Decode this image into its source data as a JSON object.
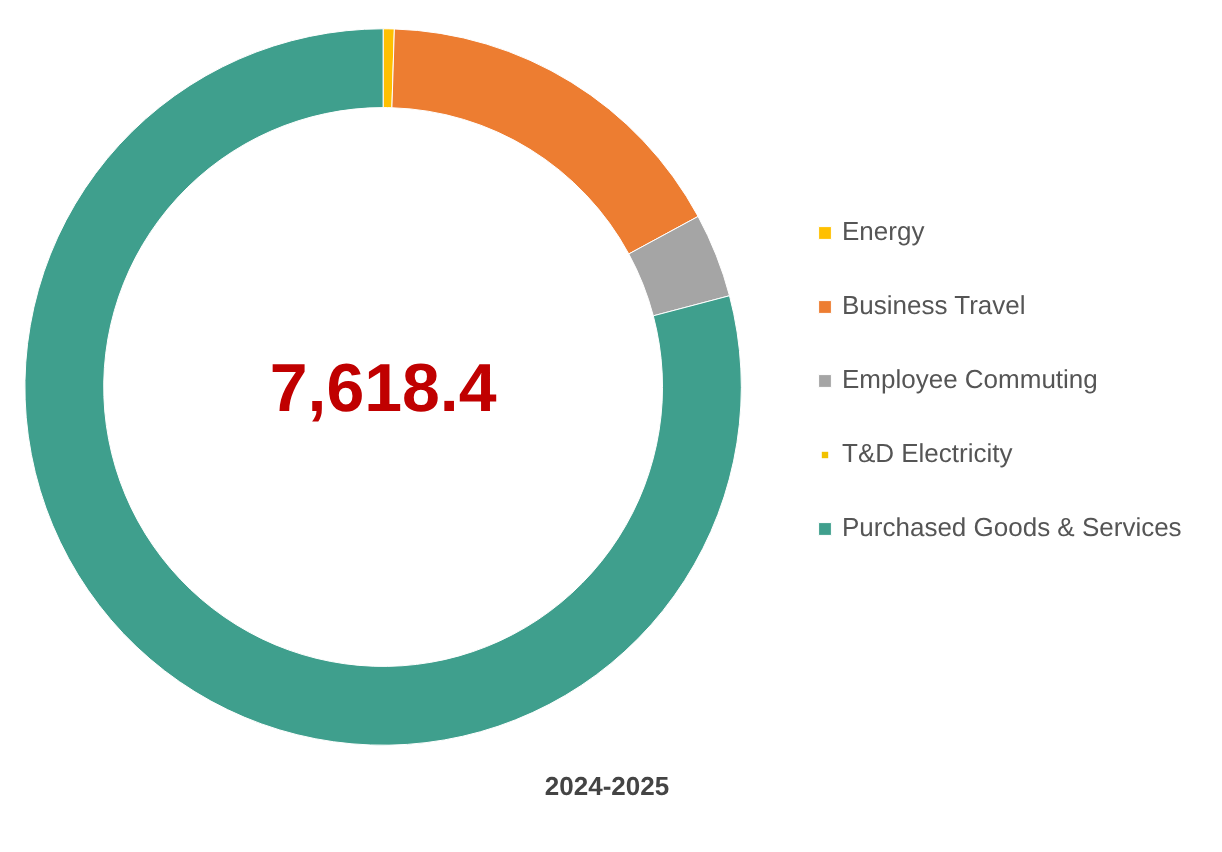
{
  "chart_data": {
    "type": "donut",
    "title": "2024-2025",
    "categories": [
      "Energy",
      "Business Travel",
      "Employee Commuting",
      "T&D Electricity",
      "Purchased Goods & Services"
    ],
    "values": [
      0.5,
      16.6,
      3.8,
      null,
      79.1
    ],
    "colors": [
      "#ffc000",
      "#ed7d31",
      "#a5a5a5",
      "#f2c200",
      "#3f9f8d"
    ],
    "annotations": [
      "7,618.4"
    ],
    "legend": "right"
  }
}
